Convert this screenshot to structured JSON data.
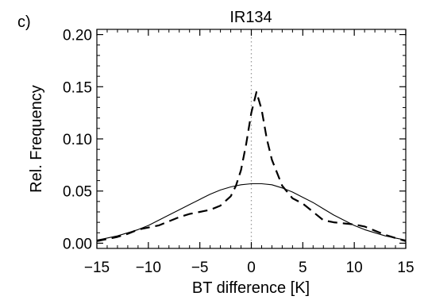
{
  "panel_label": "c)",
  "chart_data": {
    "type": "line",
    "title": "IR134",
    "xlabel": "BT difference [K]",
    "ylabel": "Rel. Frequency",
    "xlim": [
      -15,
      15
    ],
    "ylim": [
      -0.005,
      0.205
    ],
    "x_ticks": [
      -15,
      -10,
      -5,
      0,
      5,
      10,
      15
    ],
    "x_tick_labels": [
      "−15",
      "−10",
      "−5",
      "0",
      "5",
      "10",
      "15"
    ],
    "y_ticks": [
      0.0,
      0.05,
      0.1,
      0.15,
      0.2
    ],
    "y_tick_labels": [
      "0.00",
      "0.05",
      "0.10",
      "0.15",
      "0.20"
    ],
    "grid": false,
    "reference_line": {
      "x": 0,
      "style": "dotted",
      "color": "#999999"
    },
    "series": [
      {
        "style": "solid",
        "color": "#000000",
        "x": [
          -15,
          -14,
          -13,
          -12,
          -11,
          -10,
          -9,
          -8,
          -7,
          -6,
          -5,
          -4,
          -3,
          -2,
          -1,
          0,
          1,
          2,
          3,
          4,
          5,
          6,
          7,
          8,
          9,
          10,
          11,
          12,
          13,
          14,
          15
        ],
        "y": [
          0.003,
          0.005,
          0.007,
          0.01,
          0.013,
          0.017,
          0.022,
          0.027,
          0.032,
          0.037,
          0.042,
          0.047,
          0.051,
          0.054,
          0.056,
          0.057,
          0.057,
          0.056,
          0.053,
          0.049,
          0.044,
          0.039,
          0.033,
          0.027,
          0.022,
          0.017,
          0.013,
          0.01,
          0.007,
          0.005,
          0.003
        ]
      },
      {
        "style": "dashed",
        "color": "#000000",
        "x": [
          -15,
          -14,
          -13,
          -12,
          -11,
          -10,
          -9,
          -8,
          -7,
          -6,
          -5,
          -4,
          -3,
          -2,
          -1.5,
          -1,
          -0.5,
          0,
          0.5,
          1,
          1.5,
          2,
          3,
          4,
          5,
          6,
          7,
          8,
          9,
          10,
          11,
          12,
          13,
          14,
          15
        ],
        "y": [
          0.002,
          0.004,
          0.006,
          0.009,
          0.013,
          0.015,
          0.017,
          0.021,
          0.025,
          0.028,
          0.03,
          0.032,
          0.036,
          0.045,
          0.055,
          0.07,
          0.095,
          0.125,
          0.145,
          0.128,
          0.1,
          0.08,
          0.055,
          0.043,
          0.038,
          0.03,
          0.022,
          0.02,
          0.019,
          0.018,
          0.016,
          0.012,
          0.008,
          0.005,
          0.002
        ]
      }
    ]
  }
}
